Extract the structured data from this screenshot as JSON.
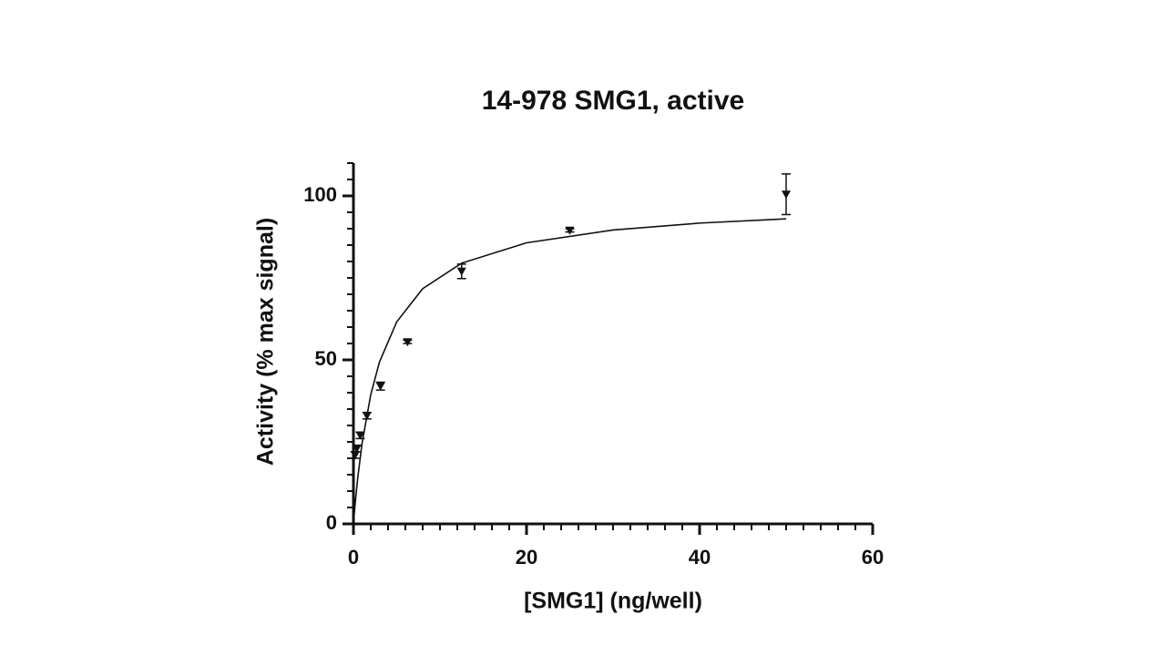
{
  "chart_data": {
    "type": "scatter",
    "title": "14-978 SMG1, active",
    "xlabel": "[SMG1] (ng/well)",
    "ylabel": "Activity (% max signal)",
    "xlim": [
      0,
      60
    ],
    "ylim": [
      0,
      110
    ],
    "xticks": [
      0,
      20,
      40,
      60
    ],
    "yticks": [
      0,
      50,
      100
    ],
    "xminorticks": [
      2,
      4,
      6,
      8,
      10,
      12,
      14,
      16,
      18,
      22,
      24,
      26,
      28,
      30,
      32,
      34,
      36,
      38,
      42,
      44,
      46,
      48,
      50,
      52,
      54,
      56,
      58
    ],
    "yminorticks": [
      5,
      10,
      15,
      20,
      25,
      30,
      35,
      40,
      45,
      55,
      60,
      65,
      70,
      75,
      80,
      85,
      90,
      95,
      105,
      110
    ],
    "color": "#111111",
    "series": [
      {
        "x": [
          0.195,
          0.39,
          0.78,
          1.56,
          3.125,
          6.25,
          12.5,
          25,
          50
        ],
        "values": [
          21,
          23,
          27,
          33,
          42,
          55.5,
          77,
          89.5,
          100.5
        ],
        "errors": [
          1,
          1,
          1,
          1,
          1.2,
          0.5,
          2.2,
          0.5,
          6.2
        ]
      }
    ],
    "fit": {
      "x": [
        0,
        0.1,
        0.25,
        0.5,
        1,
        2,
        3,
        5,
        8,
        12.5,
        20,
        30,
        40,
        50
      ],
      "values": [
        0,
        3.2,
        7.6,
        14.1,
        24.65,
        39.4,
        49.3,
        61.6,
        71.7,
        79.5,
        85.7,
        89.6,
        91.7,
        93.0
      ]
    }
  }
}
